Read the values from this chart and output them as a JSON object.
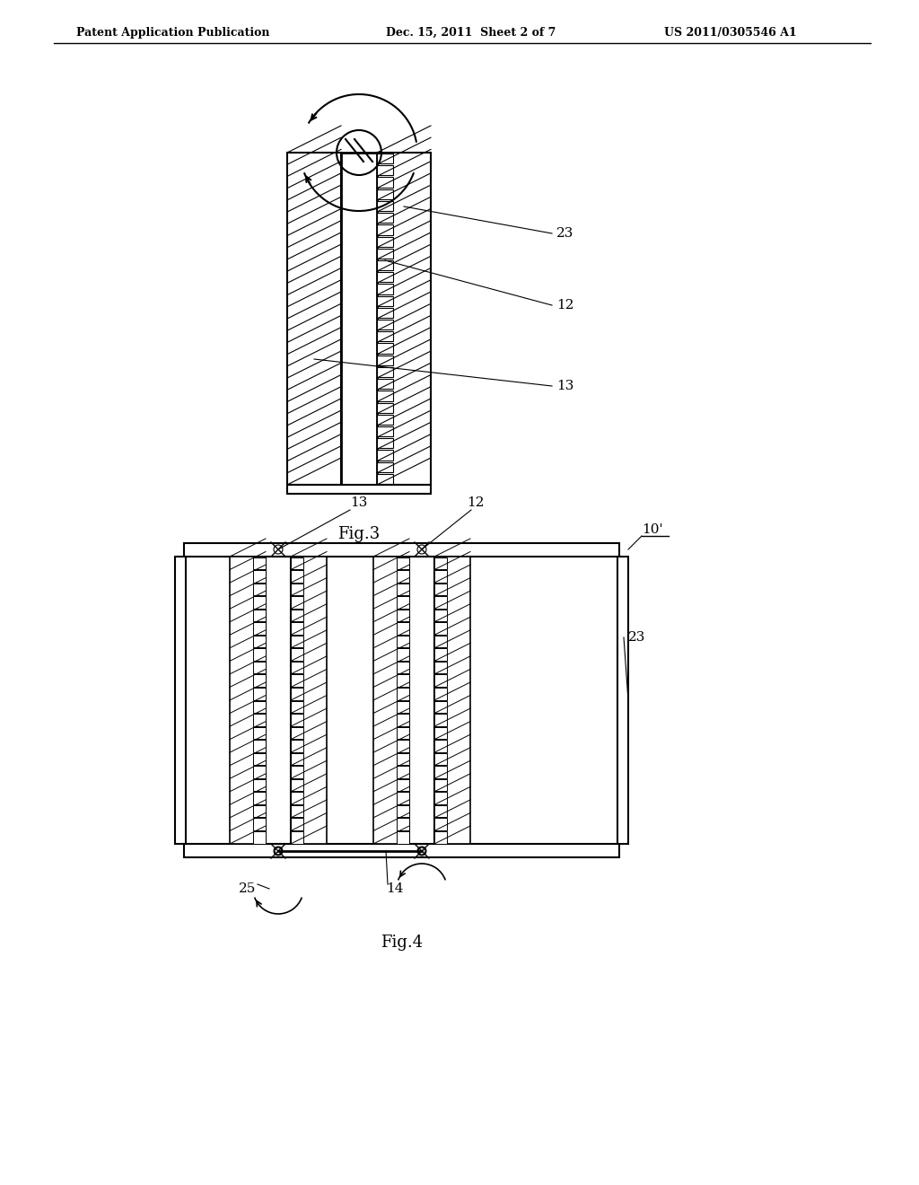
{
  "bg_color": "#ffffff",
  "line_color": "#000000",
  "header_left": "Patent Application Publication",
  "header_mid": "Dec. 15, 2011  Sheet 2 of 7",
  "header_right": "US 2011/0305546 A1",
  "fig3_caption": "Fig.3",
  "fig4_caption": "Fig.4",
  "labels": {
    "23_fig3": "23",
    "12_fig3": "12",
    "13_fig3": "13",
    "10p_fig4": "10'",
    "12_fig4": "12",
    "13_fig4": "13",
    "23_fig4": "23",
    "25_fig4": "25",
    "14_fig4": "14"
  }
}
